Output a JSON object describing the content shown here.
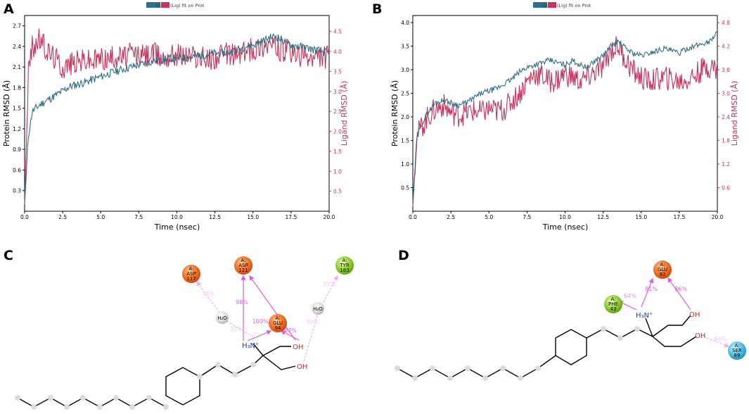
{
  "panels": {
    "A": "A",
    "B": "B",
    "C": "C",
    "D": "D"
  },
  "colors": {
    "protein": "#2f6f8a",
    "ligand": "#c8345a",
    "hbond": "#e05ce0",
    "water_bridge": "#f0b0f0",
    "acidic": "#f26a1e",
    "hydrophobic": "#8ac926",
    "polar": "#37b7e0",
    "water": "#c8c8c8"
  },
  "chart_data": [
    {
      "id": "A",
      "type": "line",
      "legend": {
        "protein": "Cα",
        "ligand": "(Lig) fit on Prot",
        "placement": "top-center"
      },
      "xlabel": "Time (nsec)",
      "ylabel_left": "Protein RMSD (Å)",
      "ylabel_right": "Ligand RMSD (Å)",
      "xlim": [
        0,
        20
      ],
      "ylim_left": [
        0,
        2.85
      ],
      "ylim_right": [
        0,
        4.9
      ],
      "xticks": [
        "0.0",
        "2.5",
        "5.0",
        "7.5",
        "10.0",
        "12.5",
        "15.0",
        "17.5",
        "20.0"
      ],
      "yticks_left": [
        "0.3",
        "0.6",
        "0.9",
        "1.2",
        "1.5",
        "1.8",
        "2.1",
        "2.4",
        "2.7"
      ],
      "yticks_right": [
        "0.5",
        "1.0",
        "1.5",
        "2.0",
        "2.5",
        "3.0",
        "3.5",
        "4.0",
        "4.5"
      ],
      "series": [
        {
          "name": "Cα",
          "axis": "left",
          "x": [
            0,
            0.25,
            0.5,
            1,
            1.5,
            2,
            2.5,
            3,
            3.5,
            4,
            4.5,
            5,
            5.5,
            6,
            6.5,
            7,
            7.5,
            8,
            8.5,
            9,
            9.5,
            10,
            10.5,
            11,
            11.5,
            12,
            12.5,
            13,
            13.5,
            14,
            14.5,
            15,
            15.5,
            16,
            16.5,
            17,
            17.5,
            18,
            18.5,
            19,
            19.5,
            20
          ],
          "y": [
            0.1,
            1.1,
            1.45,
            1.55,
            1.62,
            1.68,
            1.75,
            1.82,
            1.85,
            1.88,
            1.92,
            1.96,
            2.0,
            2.04,
            2.07,
            2.1,
            2.13,
            2.16,
            2.19,
            2.2,
            2.22,
            2.23,
            2.24,
            2.25,
            2.27,
            2.28,
            2.3,
            2.3,
            2.32,
            2.35,
            2.4,
            2.42,
            2.46,
            2.52,
            2.55,
            2.48,
            2.42,
            2.4,
            2.38,
            2.35,
            2.33,
            2.3
          ]
        },
        {
          "name": "(Lig) fit on Prot",
          "axis": "right",
          "x": [
            0,
            0.25,
            0.5,
            1,
            1.5,
            2,
            2.5,
            3,
            3.5,
            4,
            4.5,
            5,
            5.5,
            6,
            6.5,
            7,
            7.5,
            8,
            8.5,
            9,
            9.5,
            10,
            10.5,
            11,
            11.5,
            12,
            12.5,
            13,
            13.5,
            14,
            14.5,
            15,
            15.5,
            16,
            16.5,
            17,
            17.5,
            18,
            18.5,
            19,
            19.5,
            20
          ],
          "y": [
            0.2,
            3.5,
            4.1,
            4.3,
            4.0,
            3.85,
            3.6,
            3.7,
            3.75,
            3.8,
            3.75,
            3.85,
            3.8,
            3.9,
            3.85,
            3.95,
            3.9,
            3.9,
            3.95,
            3.85,
            3.9,
            3.95,
            3.9,
            3.9,
            3.85,
            3.8,
            3.85,
            3.9,
            3.95,
            3.9,
            4.0,
            4.05,
            4.15,
            4.2,
            4.1,
            4.0,
            3.95,
            3.9,
            3.85,
            3.8,
            3.9,
            3.85
          ]
        }
      ]
    },
    {
      "id": "B",
      "type": "line",
      "legend": {
        "protein": "Cα",
        "ligand": "(Lig) fit on Prot",
        "placement": "top-center"
      },
      "xlabel": "Time (nsec)",
      "ylabel_left": "Protein RMSD (Å)",
      "ylabel_right": "Ligand RMSD (Å)",
      "xlim": [
        0,
        20
      ],
      "ylim_left": [
        0,
        4.15
      ],
      "ylim_right": [
        0,
        4.98
      ],
      "xticks": [
        "0.0",
        "2.5",
        "5.0",
        "7.5",
        "10.0",
        "12.5",
        "15.0",
        "17.5",
        "20.0"
      ],
      "yticks_left": [
        "0.5",
        "1.0",
        "1.5",
        "2.0",
        "2.5",
        "3.0",
        "3.5",
        "4.0"
      ],
      "yticks_right": [
        "0.6",
        "1.2",
        "1.8",
        "2.4",
        "3.0",
        "3.6",
        "4.2",
        "4.8"
      ],
      "series": [
        {
          "name": "Cα",
          "axis": "left",
          "x": [
            0,
            0.25,
            0.5,
            1,
            1.5,
            2,
            2.5,
            3,
            3.5,
            4,
            4.5,
            5,
            5.5,
            6,
            6.5,
            7,
            7.5,
            8,
            8.5,
            9,
            9.5,
            10,
            10.5,
            11,
            11.5,
            12,
            12.5,
            13,
            13.5,
            14,
            14.5,
            15,
            15.5,
            16,
            16.5,
            17,
            17.5,
            18,
            18.5,
            19,
            19.5,
            20
          ],
          "y": [
            0.1,
            1.5,
            1.8,
            2.1,
            2.3,
            2.35,
            2.3,
            2.25,
            2.3,
            2.4,
            2.5,
            2.55,
            2.6,
            2.7,
            2.8,
            2.95,
            3.05,
            3.1,
            3.15,
            3.2,
            3.15,
            3.1,
            3.2,
            3.1,
            3.05,
            3.2,
            3.3,
            3.5,
            3.6,
            3.45,
            3.35,
            3.3,
            3.35,
            3.4,
            3.45,
            3.4,
            3.35,
            3.45,
            3.5,
            3.55,
            3.6,
            3.8
          ]
        },
        {
          "name": "(Lig) fit on Prot",
          "axis": "right",
          "x": [
            0,
            0.25,
            0.5,
            1,
            1.5,
            2,
            2.5,
            3,
            3.5,
            4,
            4.5,
            5,
            5.5,
            6,
            6.5,
            7,
            7.5,
            8,
            8.5,
            9,
            9.5,
            10,
            10.5,
            11,
            11.5,
            12,
            12.5,
            13,
            13.5,
            14,
            14.5,
            15,
            15.5,
            16,
            16.5,
            17,
            17.5,
            18,
            18.5,
            19,
            19.5,
            20
          ],
          "y": [
            0.2,
            1.9,
            2.1,
            2.4,
            2.6,
            2.7,
            2.5,
            2.45,
            2.5,
            2.55,
            2.5,
            2.6,
            2.55,
            2.6,
            2.8,
            3.0,
            3.3,
            3.5,
            3.45,
            3.3,
            3.35,
            3.5,
            3.4,
            3.3,
            3.4,
            3.55,
            3.65,
            4.1,
            4.2,
            3.85,
            3.55,
            3.4,
            3.3,
            3.35,
            3.4,
            3.35,
            3.3,
            3.35,
            3.45,
            3.6,
            3.7,
            3.6
          ]
        }
      ]
    }
  ],
  "diagram_c": {
    "residues": [
      {
        "chain": "A:",
        "name": "ASP",
        "num": "117",
        "type": "acidic"
      },
      {
        "chain": "A:",
        "name": "ASP",
        "num": "121",
        "type": "acidic"
      },
      {
        "chain": "A:",
        "name": "GLU",
        "num": "94",
        "type": "acidic"
      },
      {
        "chain": "A:",
        "name": "TYR",
        "num": "183",
        "type": "hydrophobic"
      }
    ],
    "waters": [
      "H₂O",
      "H₂O"
    ],
    "atoms": {
      "amine": "H₃N⁺",
      "hydroxyl_1": "OH",
      "hydroxyl_2": "OH"
    },
    "interactions": [
      "98%",
      "100%",
      "97%",
      "38%",
      "33%",
      "30%",
      "31%"
    ]
  },
  "diagram_d": {
    "residues": [
      {
        "chain": "A:",
        "name": "GLU",
        "num": "92",
        "type": "acidic"
      },
      {
        "chain": "A:",
        "name": "PHE",
        "num": "43",
        "type": "hydrophobic"
      },
      {
        "chain": "A:",
        "name": "SER",
        "num": "89",
        "type": "polar"
      }
    ],
    "atoms": {
      "amine": "H₃N⁺",
      "hydroxyl_1": "OH",
      "hydroxyl_2": "OH"
    },
    "interactions": [
      "64%",
      "81%",
      "86%",
      "46%"
    ]
  }
}
